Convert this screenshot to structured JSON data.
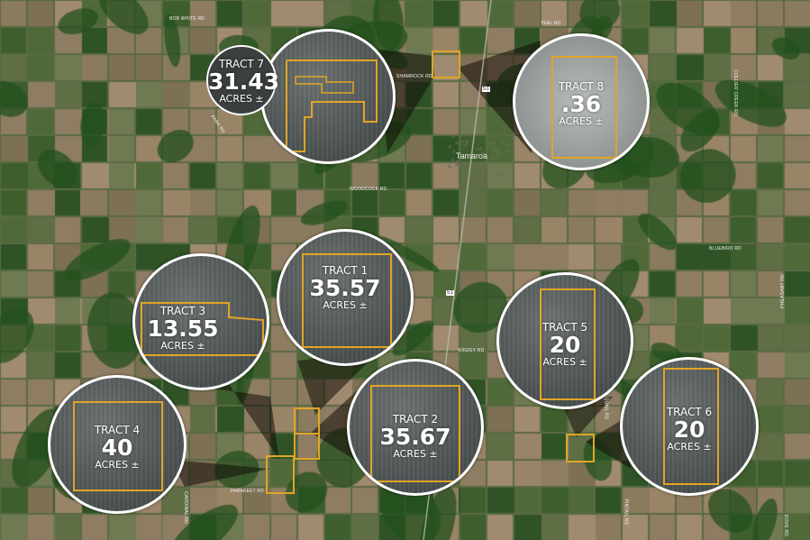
{
  "roads": [
    "BOB WHITE RD",
    "TEAL RD",
    "SHAMROCK RD",
    "PARK RD",
    "WOODCOCK RD",
    "BLUEBIRD RD",
    "COLLIER CREEK RD",
    "PHEASANT RD",
    "KINZEY RD",
    "PARAKEET RD",
    "QUAIL RD",
    "CARDINAL RD",
    "PINTAIL RD",
    "DOVE RD"
  ],
  "town": "Tamaroa",
  "highway": "51",
  "accent_color": "#e0a526",
  "tracts": [
    {
      "title": "TRACT 7",
      "acres": "31.43",
      "unit": "ACRES ±"
    },
    {
      "title": "TRACT 8",
      "acres": ".36",
      "unit": "ACRES ±"
    },
    {
      "title": "TRACT 3",
      "acres": "13.55",
      "unit": "ACRES ±"
    },
    {
      "title": "TRACT 1",
      "acres": "35.57",
      "unit": "ACRES ±"
    },
    {
      "title": "TRACT 4",
      "acres": "40",
      "unit": "ACRES ±"
    },
    {
      "title": "TRACT 2",
      "acres": "35.67",
      "unit": "ACRES ±"
    },
    {
      "title": "TRACT 5",
      "acres": "20",
      "unit": "ACRES ±"
    },
    {
      "title": "TRACT 6",
      "acres": "20",
      "unit": "ACRES ±"
    }
  ]
}
